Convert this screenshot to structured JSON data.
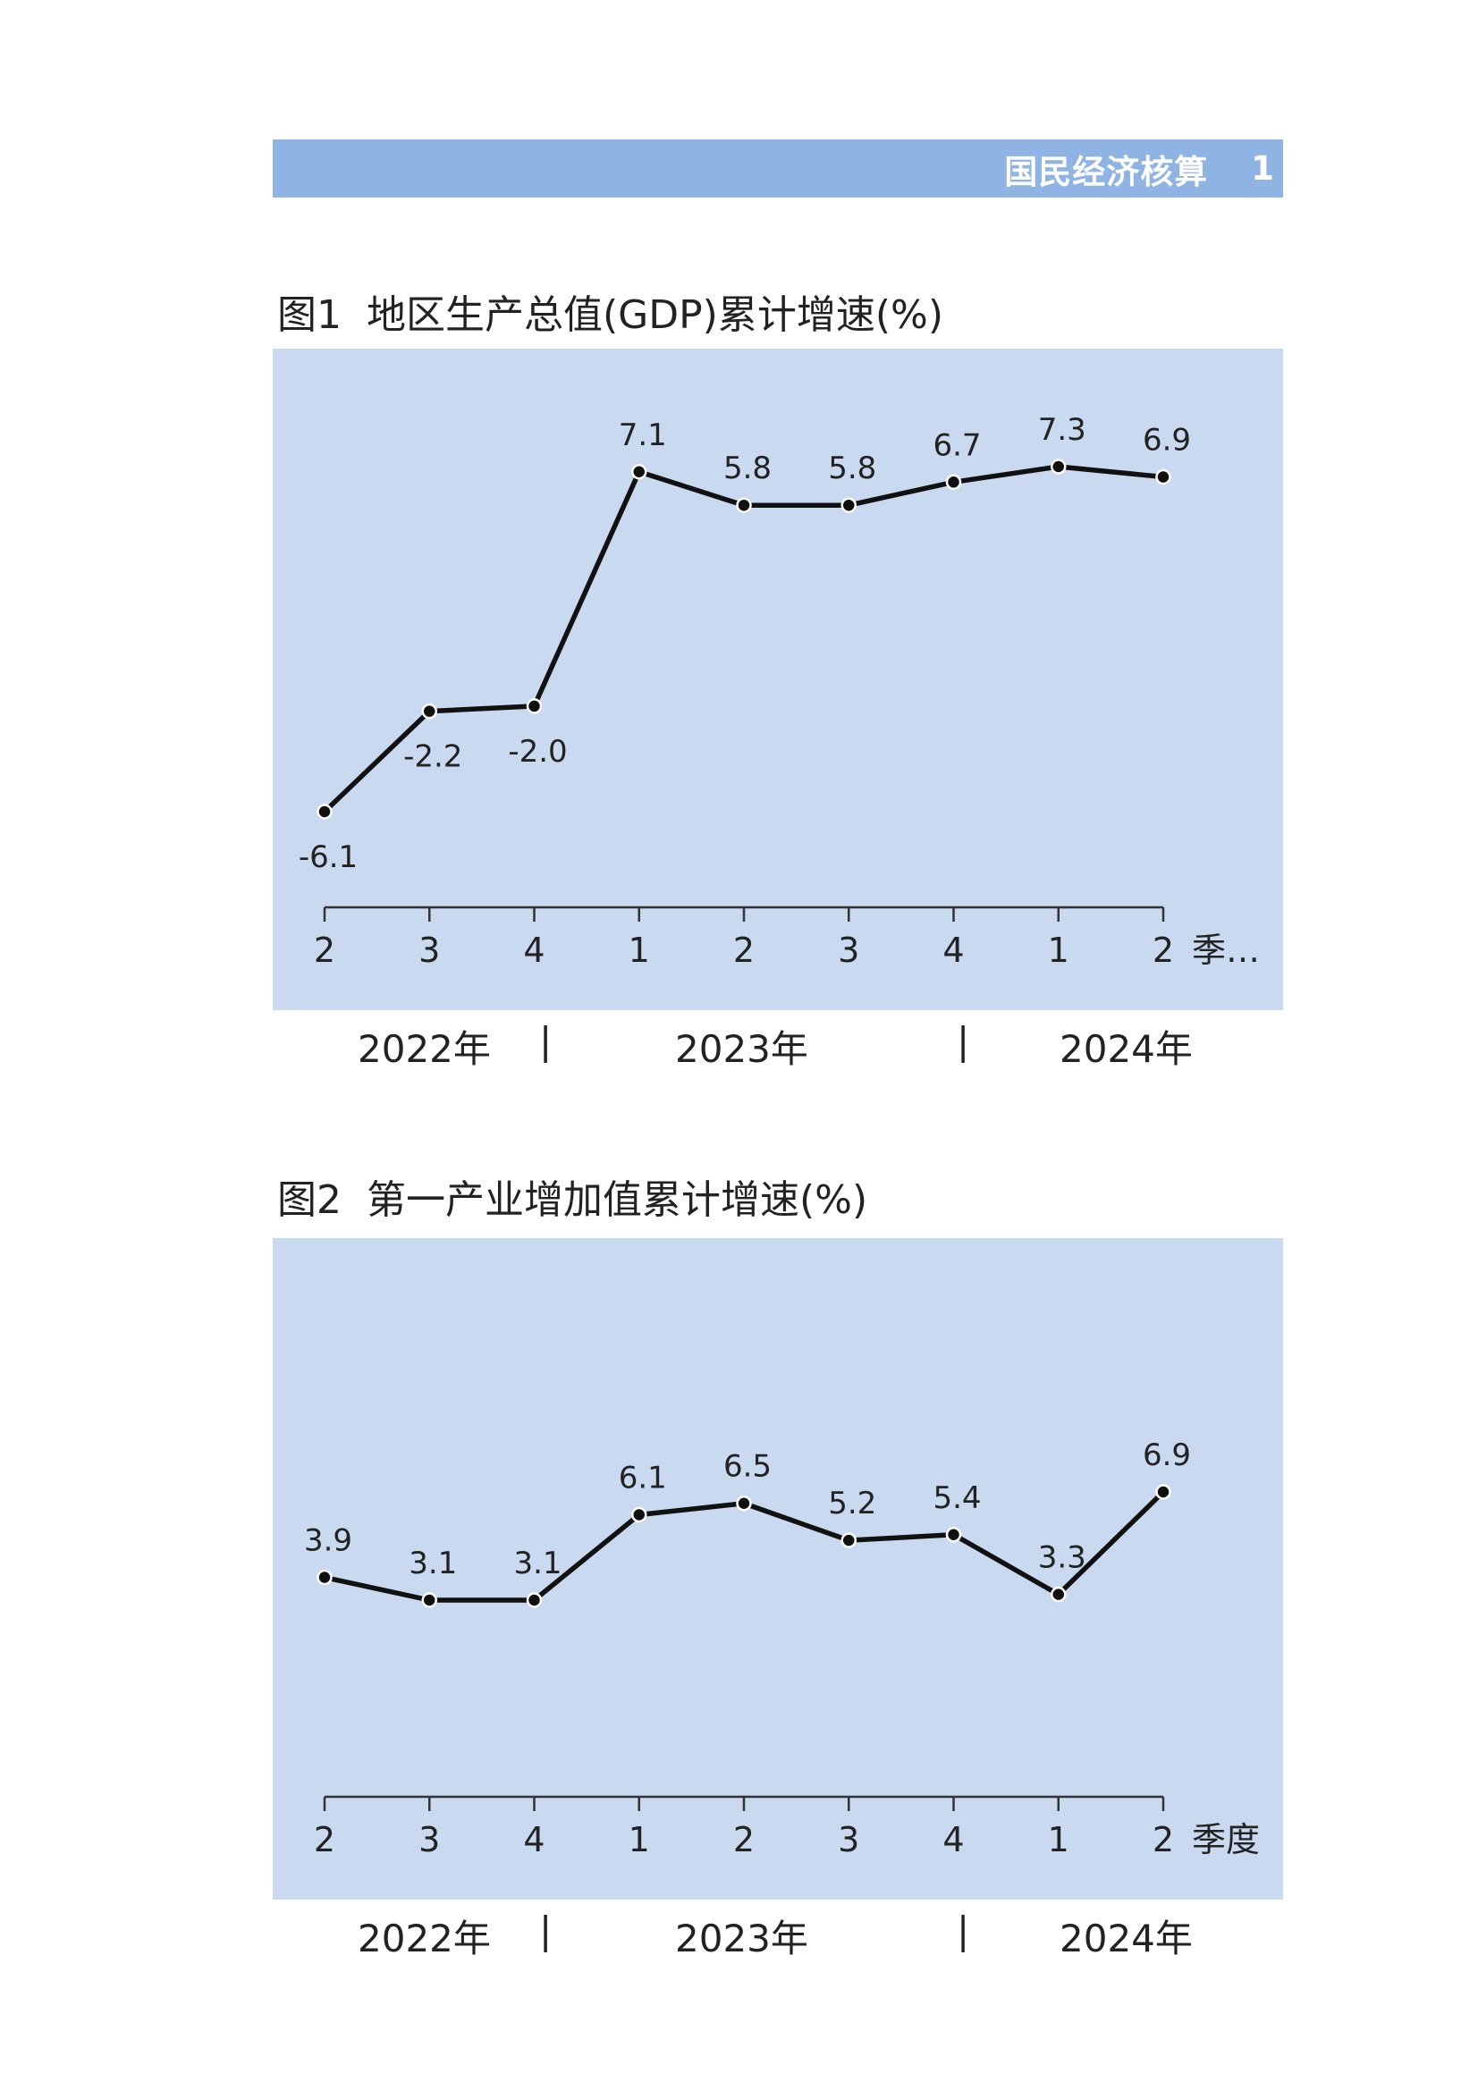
{
  "header": {
    "title": "国民经济核算",
    "page_number": "1",
    "bar_color": "#8fb4e3"
  },
  "charts": [
    {
      "number": "图1",
      "title": "地区生产总值(GDP)累计增速(%)",
      "unit_label": "季…",
      "year_labels": [
        "2022年",
        "2023年",
        "2024年"
      ],
      "separator": "|"
    },
    {
      "number": "图2",
      "title": "第一产业增加值累计增速(%)",
      "unit_label": "季度",
      "year_labels": [
        "2022年",
        "2023年",
        "2024年"
      ],
      "separator": "|"
    }
  ],
  "chart_data": [
    {
      "type": "line",
      "title": "地区生产总值(GDP)累计增速(%)",
      "categories": [
        "2",
        "3",
        "4",
        "1",
        "2",
        "3",
        "4",
        "1",
        "2"
      ],
      "values": [
        -6.1,
        -2.2,
        -2.0,
        7.1,
        5.8,
        5.8,
        6.7,
        7.3,
        6.9
      ],
      "value_labels": [
        "-6.1",
        "-2.2",
        "-2.0",
        "7.1",
        "5.8",
        "5.8",
        "6.7",
        "7.3",
        "6.9"
      ],
      "xlabel": "季…",
      "ylabel": "",
      "grid": false,
      "background": "#c8d9f0",
      "line_color": "#111111"
    },
    {
      "type": "line",
      "title": "第一产业增加值累计增速(%)",
      "categories": [
        "2",
        "3",
        "4",
        "1",
        "2",
        "3",
        "4",
        "1",
        "2"
      ],
      "values": [
        3.9,
        3.1,
        3.1,
        6.1,
        6.5,
        5.2,
        5.4,
        3.3,
        6.9
      ],
      "value_labels": [
        "3.9",
        "3.1",
        "3.1",
        "6.1",
        "6.5",
        "5.2",
        "5.4",
        "3.3",
        "6.9"
      ],
      "xlabel": "季度",
      "ylabel": "",
      "grid": false,
      "background": "#c8d9f0",
      "line_color": "#111111"
    }
  ]
}
